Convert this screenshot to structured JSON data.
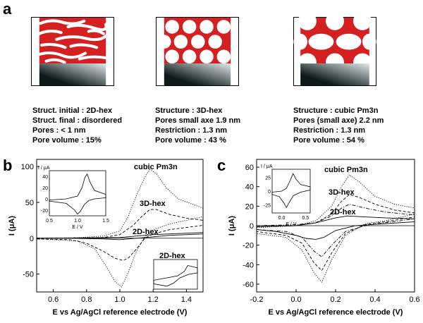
{
  "panel_letters": {
    "a": "a",
    "b": "b",
    "c": "c"
  },
  "structures": [
    {
      "lines": [
        "Struct. initial : 2D-hex",
        "Struct. final : disordered",
        "Pores : < 1 nm",
        "Pore volume : 15%"
      ]
    },
    {
      "lines": [
        "Structure : 3D-hex",
        "Pores small axe 1.9 nm",
        "Restriction : 1.3 nm",
        "Pore volume : 43 %"
      ]
    },
    {
      "lines": [
        "Structure : cubic Pm3n",
        "Pores (small axe) 2.2 nm",
        "Restriction : 1.3 nm",
        "Pore volume : 54 %"
      ]
    }
  ],
  "colors": {
    "pore_red": "#d42020",
    "substrate_dark": "#0d1a1a",
    "substrate_light": "#dfe8e8"
  },
  "chart_data": [
    {
      "type": "line",
      "panel": "b",
      "xlabel": "E vs Ag/AgCl reference electrode (V)",
      "ylabel": "I (μA)",
      "xlim": [
        0.5,
        1.5
      ],
      "ylim": [
        -75,
        110
      ],
      "xticks": [
        "0.6",
        "0.8",
        "1.0",
        "1.2",
        "1.4"
      ],
      "yticks": [
        "-50",
        "0",
        "50",
        "100"
      ],
      "annotations": [
        "cubic Pm3n",
        "3D-hex",
        "2D-hex",
        "2D-hex"
      ],
      "series": [
        {
          "name": "cubic Pm3n",
          "style": "dotted",
          "forward": [
            [
              0.5,
              0
            ],
            [
              0.7,
              0
            ],
            [
              0.9,
              3
            ],
            [
              1.0,
              10
            ],
            [
              1.05,
              30
            ],
            [
              1.1,
              60
            ],
            [
              1.15,
              85
            ],
            [
              1.18,
              96
            ],
            [
              1.22,
              90
            ],
            [
              1.28,
              70
            ],
            [
              1.35,
              55
            ],
            [
              1.5,
              42
            ]
          ],
          "reverse": [
            [
              1.5,
              30
            ],
            [
              1.3,
              20
            ],
            [
              1.2,
              12
            ],
            [
              1.15,
              2
            ],
            [
              1.1,
              -18
            ],
            [
              1.05,
              -48
            ],
            [
              1.01,
              -68
            ],
            [
              0.97,
              -60
            ],
            [
              0.92,
              -40
            ],
            [
              0.85,
              -15
            ],
            [
              0.75,
              -4
            ],
            [
              0.6,
              -2
            ],
            [
              0.5,
              -1
            ]
          ]
        },
        {
          "name": "3D-hex",
          "style": "dashed",
          "forward": [
            [
              0.5,
              0
            ],
            [
              0.9,
              1
            ],
            [
              1.0,
              5
            ],
            [
              1.08,
              18
            ],
            [
              1.13,
              30
            ],
            [
              1.18,
              40
            ],
            [
              1.22,
              40
            ],
            [
              1.3,
              33
            ],
            [
              1.4,
              28
            ],
            [
              1.5,
              25
            ]
          ],
          "reverse": [
            [
              1.5,
              18
            ],
            [
              1.3,
              12
            ],
            [
              1.2,
              6
            ],
            [
              1.15,
              0
            ],
            [
              1.1,
              -15
            ],
            [
              1.05,
              -28
            ],
            [
              1.02,
              -31
            ],
            [
              0.97,
              -28
            ],
            [
              0.9,
              -18
            ],
            [
              0.8,
              -7
            ],
            [
              0.7,
              -2
            ],
            [
              0.5,
              -1
            ]
          ]
        },
        {
          "name": "2D-hex",
          "style": "solid",
          "forward": [
            [
              0.5,
              0
            ],
            [
              1.0,
              1
            ],
            [
              1.1,
              3
            ],
            [
              1.2,
              5
            ],
            [
              1.3,
              6
            ],
            [
              1.4,
              7
            ],
            [
              1.5,
              8
            ]
          ],
          "reverse": [
            [
              1.5,
              6
            ],
            [
              1.3,
              4
            ],
            [
              1.2,
              2
            ],
            [
              1.1,
              0
            ],
            [
              1.0,
              -2
            ],
            [
              0.9,
              -1
            ],
            [
              0.7,
              0
            ],
            [
              0.5,
              0
            ]
          ]
        }
      ],
      "inset_1": {
        "ylabel": "I / μA",
        "xlabel": "E / V",
        "xticks": [
          "0.5",
          "1.0",
          "1.5"
        ],
        "yticks": [
          "-20",
          "0",
          "20",
          "40"
        ],
        "xlim": [
          0.5,
          1.5
        ],
        "ylim": [
          -30,
          50
        ],
        "forward": [
          [
            0.5,
            -2
          ],
          [
            0.8,
            0
          ],
          [
            1.0,
            5
          ],
          [
            1.08,
            20
          ],
          [
            1.13,
            38
          ],
          [
            1.17,
            44
          ],
          [
            1.22,
            30
          ],
          [
            1.3,
            15
          ],
          [
            1.5,
            8
          ]
        ],
        "reverse": [
          [
            1.5,
            2
          ],
          [
            1.3,
            0
          ],
          [
            1.2,
            -3
          ],
          [
            1.12,
            -10
          ],
          [
            1.05,
            -22
          ],
          [
            1.0,
            -27
          ],
          [
            0.95,
            -20
          ],
          [
            0.8,
            -8
          ],
          [
            0.5,
            -4
          ]
        ]
      },
      "inset_2": {
        "forward": [
          [
            0,
            0.7
          ],
          [
            0.3,
            0.62
          ],
          [
            0.55,
            0.55
          ],
          [
            0.7,
            0.4
          ],
          [
            0.78,
            0.2
          ],
          [
            1,
            0.28
          ]
        ],
        "reverse": [
          [
            1,
            0.45
          ],
          [
            0.8,
            0.5
          ],
          [
            0.6,
            0.62
          ],
          [
            0.45,
            0.8
          ],
          [
            0.3,
            0.9
          ],
          [
            0,
            0.82
          ]
        ]
      }
    },
    {
      "type": "line",
      "panel": "c",
      "xlabel": "E vs Ag/AgCl reference electrode (V)",
      "ylabel": "I (μA)",
      "xlim": [
        -0.2,
        0.6
      ],
      "ylim": [
        -68,
        68
      ],
      "xticks": [
        "-0.2",
        "0.0",
        "0.2",
        "0.4",
        "0.6"
      ],
      "yticks": [
        "-60",
        "-40",
        "-20",
        "0",
        "20",
        "40",
        "60"
      ],
      "annotations": [
        "cubic Pm3n",
        "3D-hex",
        "2D-hex"
      ],
      "series": [
        {
          "name": "cubic Pm3n",
          "style": "dotted",
          "forward": [
            [
              -0.2,
              -2
            ],
            [
              0,
              0
            ],
            [
              0.1,
              5
            ],
            [
              0.18,
              20
            ],
            [
              0.23,
              40
            ],
            [
              0.27,
              52
            ],
            [
              0.32,
              45
            ],
            [
              0.4,
              30
            ],
            [
              0.5,
              22
            ],
            [
              0.6,
              18
            ]
          ],
          "reverse": [
            [
              0.6,
              12
            ],
            [
              0.45,
              5
            ],
            [
              0.35,
              2
            ],
            [
              0.25,
              -10
            ],
            [
              0.18,
              -35
            ],
            [
              0.13,
              -58
            ],
            [
              0.09,
              -48
            ],
            [
              0.03,
              -25
            ],
            [
              -0.05,
              -12
            ],
            [
              -0.2,
              -8
            ]
          ]
        },
        {
          "name": "3D-hex",
          "style": "dashed",
          "forward": [
            [
              -0.2,
              -1
            ],
            [
              0,
              0
            ],
            [
              0.1,
              3
            ],
            [
              0.18,
              12
            ],
            [
              0.23,
              25
            ],
            [
              0.27,
              32
            ],
            [
              0.32,
              29
            ],
            [
              0.4,
              22
            ],
            [
              0.5,
              16
            ],
            [
              0.6,
              13
            ]
          ],
          "reverse": [
            [
              0.6,
              9
            ],
            [
              0.45,
              4
            ],
            [
              0.35,
              1
            ],
            [
              0.25,
              -8
            ],
            [
              0.18,
              -28
            ],
            [
              0.13,
              -46
            ],
            [
              0.09,
              -38
            ],
            [
              0.03,
              -18
            ],
            [
              -0.05,
              -10
            ],
            [
              -0.2,
              -6
            ]
          ]
        },
        {
          "name": "dash-dot",
          "style": "dashdot",
          "forward": [
            [
              -0.2,
              0
            ],
            [
              0,
              1
            ],
            [
              0.1,
              3
            ],
            [
              0.18,
              10
            ],
            [
              0.23,
              18
            ],
            [
              0.27,
              22
            ],
            [
              0.35,
              18
            ],
            [
              0.45,
              14
            ],
            [
              0.6,
              11
            ]
          ],
          "reverse": [
            [
              0.6,
              7
            ],
            [
              0.45,
              3
            ],
            [
              0.35,
              0
            ],
            [
              0.25,
              -6
            ],
            [
              0.18,
              -20
            ],
            [
              0.13,
              -32
            ],
            [
              0.09,
              -26
            ],
            [
              0.03,
              -12
            ],
            [
              -0.05,
              -6
            ],
            [
              -0.2,
              -4
            ]
          ]
        },
        {
          "name": "2D-hex",
          "style": "solid",
          "forward": [
            [
              -0.2,
              -1
            ],
            [
              0,
              0
            ],
            [
              0.1,
              3
            ],
            [
              0.2,
              8
            ],
            [
              0.26,
              10
            ],
            [
              0.35,
              9
            ],
            [
              0.45,
              8
            ],
            [
              0.6,
              7
            ]
          ],
          "reverse": [
            [
              0.6,
              4
            ],
            [
              0.45,
              2
            ],
            [
              0.3,
              0
            ],
            [
              0.2,
              -5
            ],
            [
              0.14,
              -12
            ],
            [
              0.1,
              -14
            ],
            [
              0.05,
              -13
            ],
            [
              0,
              -10
            ],
            [
              -0.1,
              -6
            ],
            [
              -0.2,
              -4
            ]
          ]
        }
      ],
      "inset": {
        "ylabel": "I / μA",
        "xlabel": "E / V",
        "xticks": [
          "0.0",
          "0.5"
        ],
        "yticks": [
          "-25",
          "0",
          "25"
        ],
        "xlim": [
          -0.2,
          0.6
        ],
        "ylim": [
          -40,
          40
        ],
        "forward": [
          [
            -0.2,
            -2
          ],
          [
            0,
            0
          ],
          [
            0.1,
            5
          ],
          [
            0.18,
            20
          ],
          [
            0.24,
            32
          ],
          [
            0.3,
            22
          ],
          [
            0.4,
            12
          ],
          [
            0.6,
            8
          ]
        ],
        "reverse": [
          [
            0.6,
            2
          ],
          [
            0.4,
            -2
          ],
          [
            0.25,
            -8
          ],
          [
            0.15,
            -22
          ],
          [
            0.1,
            -30
          ],
          [
            0.05,
            -22
          ],
          [
            -0.05,
            -10
          ],
          [
            -0.2,
            -6
          ]
        ]
      }
    }
  ]
}
